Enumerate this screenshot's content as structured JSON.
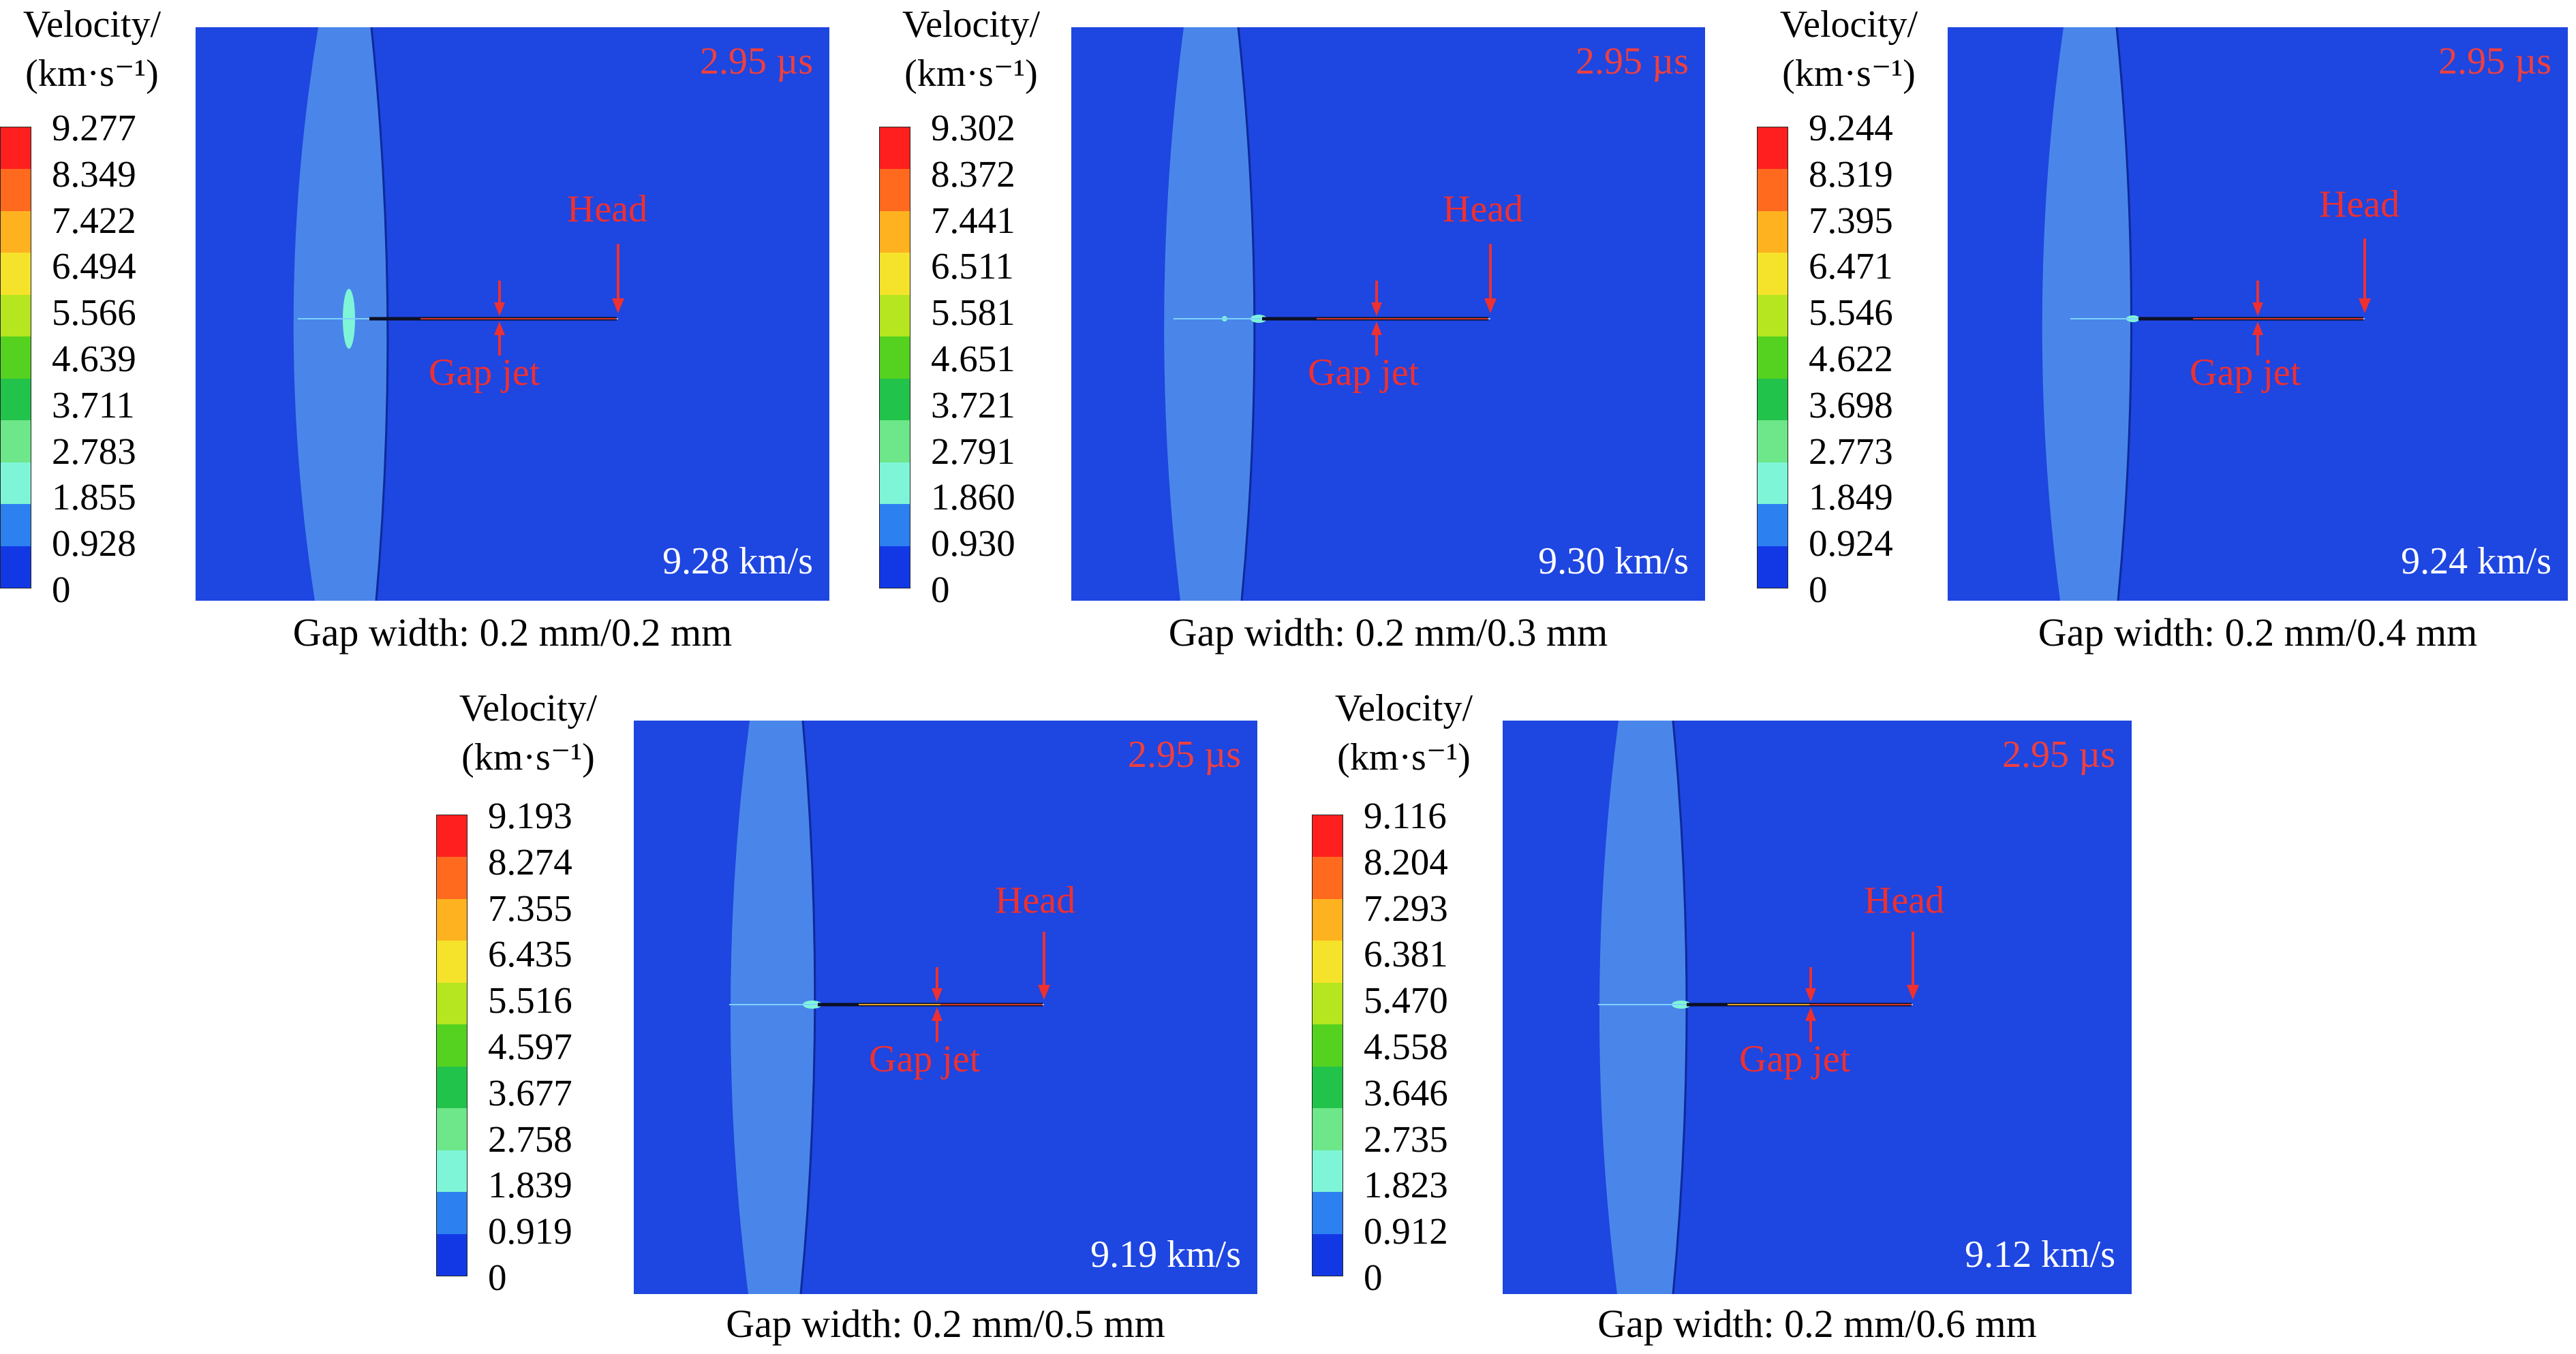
{
  "legend": {
    "title_line1": "Velocity/",
    "title_line2": "(km·s⁻¹)",
    "colors": [
      "#ff1f1f",
      "#ff6a1f",
      "#ffb21f",
      "#f5e32b",
      "#b6e61f",
      "#55d21f",
      "#22c34a",
      "#6ee68a",
      "#7ff5d8",
      "#2d80f0",
      "#1238e6"
    ]
  },
  "annotations": {
    "head": "Head",
    "gap_jet": "Gap jet"
  },
  "panels": [
    {
      "ticks": [
        "9.277",
        "8.349",
        "7.422",
        "6.494",
        "5.566",
        "4.639",
        "3.711",
        "2.783",
        "1.855",
        "0.928",
        "0"
      ],
      "time": "2.95 µs",
      "velocity": "9.28 km/s",
      "caption": "Gap width: 0.2 mm/0.2 mm"
    },
    {
      "ticks": [
        "9.302",
        "8.372",
        "7.441",
        "6.511",
        "5.581",
        "4.651",
        "3.721",
        "2.791",
        "1.860",
        "0.930",
        "0"
      ],
      "time": "2.95 µs",
      "velocity": "9.30 km/s",
      "caption": "Gap width: 0.2 mm/0.3 mm"
    },
    {
      "ticks": [
        "9.244",
        "8.319",
        "7.395",
        "6.471",
        "5.546",
        "4.622",
        "3.698",
        "2.773",
        "1.849",
        "0.924",
        "0"
      ],
      "time": "2.95 µs",
      "velocity": "9.24 km/s",
      "caption": "Gap width: 0.2 mm/0.4 mm"
    },
    {
      "ticks": [
        "9.193",
        "8.274",
        "7.355",
        "6.435",
        "5.516",
        "4.597",
        "3.677",
        "2.758",
        "1.839",
        "0.919",
        "0"
      ],
      "time": "2.95 µs",
      "velocity": "9.19 km/s",
      "caption": "Gap width: 0.2 mm/0.5 mm"
    },
    {
      "ticks": [
        "9.116",
        "8.204",
        "7.293",
        "6.381",
        "5.470",
        "4.558",
        "3.646",
        "2.735",
        "1.823",
        "0.912",
        "0"
      ],
      "time": "2.95 µs",
      "velocity": "9.12 km/s",
      "caption": "Gap width: 0.2 mm/0.6 mm"
    }
  ]
}
